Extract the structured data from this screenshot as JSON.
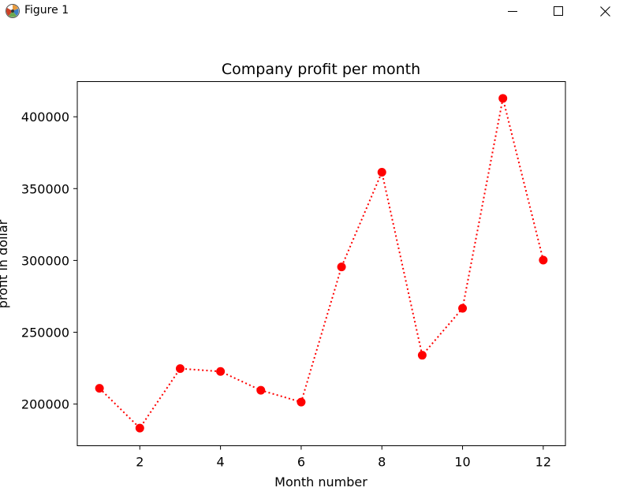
{
  "window": {
    "title": "Figure 1"
  },
  "icons": {
    "app": "matplotlib-figure-icon",
    "minimize": "minimize-icon",
    "maximize": "maximize-icon",
    "close": "close-icon"
  },
  "chart_data": {
    "type": "line",
    "title": "Company profit per month",
    "xlabel": "Month number",
    "ylabel": "profit in dollar",
    "x": [
      1,
      2,
      3,
      4,
      5,
      6,
      7,
      8,
      9,
      10,
      11,
      12
    ],
    "series": [
      {
        "values": [
          211000,
          183300,
          224700,
          222700,
          209600,
          201400,
          295500,
          361400,
          234000,
          266700,
          412800,
          300200
        ],
        "color": "#ff0000",
        "linestyle": "dotted",
        "marker": "circle"
      }
    ],
    "xticks": [
      "2",
      "4",
      "6",
      "8",
      "10",
      "12"
    ],
    "yticks": [
      "200000",
      "250000",
      "300000",
      "350000",
      "400000"
    ],
    "xlim": [
      0.45,
      12.55
    ],
    "ylim": [
      171000,
      424500
    ],
    "grid": false,
    "legend": "none"
  }
}
